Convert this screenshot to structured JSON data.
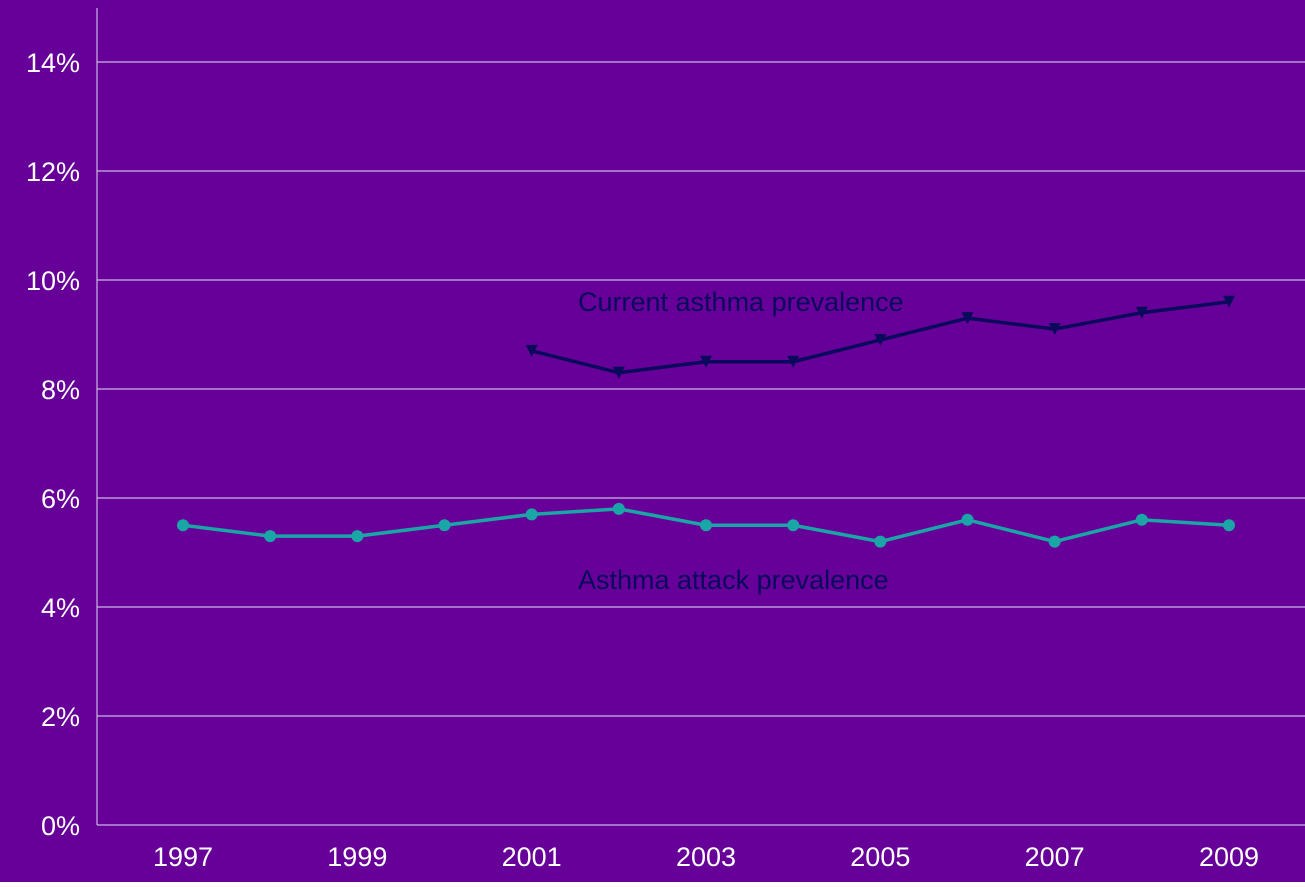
{
  "colors": {
    "background": "#660099",
    "gridline": "#c9b8e0",
    "axis_text": "#ffffff",
    "current_series": "#0a0a5c",
    "attack_series": "#1aa6a6"
  },
  "chart_data": {
    "type": "line",
    "title": "",
    "xlabel": "",
    "ylabel": "",
    "x": [
      1997,
      1998,
      1999,
      2000,
      2001,
      2002,
      2003,
      2004,
      2005,
      2006,
      2007,
      2008,
      2009
    ],
    "x_tick_labels": [
      "1997",
      "1999",
      "2001",
      "2003",
      "2005",
      "2007",
      "2009"
    ],
    "ylim": [
      0,
      14
    ],
    "y_ticks": [
      0,
      2,
      4,
      6,
      8,
      10,
      12,
      14
    ],
    "y_tick_labels": [
      "0%",
      "2%",
      "4%",
      "6%",
      "8%",
      "10%",
      "12%",
      "14%"
    ],
    "grid": true,
    "series": [
      {
        "name": "Current asthma prevalence",
        "color_key": "current_series",
        "marker": "triangle-down",
        "values": [
          null,
          null,
          null,
          null,
          8.7,
          8.3,
          8.5,
          8.5,
          8.9,
          9.3,
          9.1,
          9.4,
          9.6
        ]
      },
      {
        "name": "Asthma attack prevalence",
        "color_key": "attack_series",
        "marker": "circle",
        "values": [
          5.5,
          5.3,
          5.3,
          5.5,
          5.7,
          5.8,
          5.5,
          5.5,
          5.2,
          5.6,
          5.2,
          5.6,
          5.5
        ]
      }
    ]
  }
}
